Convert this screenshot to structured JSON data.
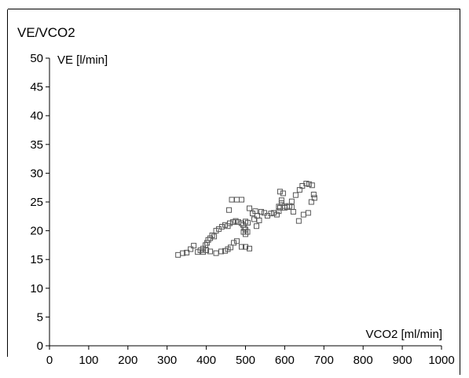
{
  "chart_data": {
    "type": "scatter",
    "title": "VE/VCO2",
    "xlabel": "VCO2 [ml/min]",
    "ylabel": "VE [l/min]",
    "xlim": [
      0,
      1000
    ],
    "ylim": [
      0,
      50
    ],
    "xticks": [
      0,
      100,
      200,
      300,
      400,
      500,
      600,
      700,
      800,
      900,
      1000
    ],
    "yticks": [
      0,
      5,
      10,
      15,
      20,
      25,
      30,
      35,
      40,
      45,
      50
    ],
    "grid": false,
    "marker": "open-square",
    "color": "#555555",
    "series": [
      {
        "points": [
          [
            328,
            15.8
          ],
          [
            340,
            16.1
          ],
          [
            350,
            16.2
          ],
          [
            360,
            16.8
          ],
          [
            368,
            17.4
          ],
          [
            378,
            16.3
          ],
          [
            385,
            16.6
          ],
          [
            392,
            16.9
          ],
          [
            398,
            17.5
          ],
          [
            402,
            17.9
          ],
          [
            405,
            18.4
          ],
          [
            410,
            18.7
          ],
          [
            415,
            19.2
          ],
          [
            420,
            19.0
          ],
          [
            425,
            20.0
          ],
          [
            432,
            20.3
          ],
          [
            440,
            20.7
          ],
          [
            448,
            21.0
          ],
          [
            455,
            20.8
          ],
          [
            460,
            21.3
          ],
          [
            458,
            23.6
          ],
          [
            465,
            25.4
          ],
          [
            478,
            25.4
          ],
          [
            490,
            25.4
          ],
          [
            468,
            21.5
          ],
          [
            475,
            21.7
          ],
          [
            482,
            21.5
          ],
          [
            490,
            21.3
          ],
          [
            494,
            21.0
          ],
          [
            497,
            20.5
          ],
          [
            500,
            20.2
          ],
          [
            505,
            19.8
          ],
          [
            500,
            19.4
          ],
          [
            495,
            19.8
          ],
          [
            500,
            21.6
          ],
          [
            506,
            21.4
          ],
          [
            510,
            23.9
          ],
          [
            518,
            23.0
          ],
          [
            525,
            23.4
          ],
          [
            530,
            22.6
          ],
          [
            535,
            21.8
          ],
          [
            528,
            20.8
          ],
          [
            522,
            22.0
          ],
          [
            540,
            23.3
          ],
          [
            548,
            23.1
          ],
          [
            556,
            22.6
          ],
          [
            565,
            23.0
          ],
          [
            572,
            23.1
          ],
          [
            580,
            22.8
          ],
          [
            585,
            23.4
          ],
          [
            588,
            24.0
          ],
          [
            592,
            25.3
          ],
          [
            588,
            26.8
          ],
          [
            596,
            26.5
          ],
          [
            600,
            24.0
          ],
          [
            606,
            24.1
          ],
          [
            612,
            24.3
          ],
          [
            618,
            24.1
          ],
          [
            622,
            23.3
          ],
          [
            618,
            25.1
          ],
          [
            628,
            26.2
          ],
          [
            638,
            27.1
          ],
          [
            645,
            27.8
          ],
          [
            655,
            28.2
          ],
          [
            662,
            28.1
          ],
          [
            670,
            27.9
          ],
          [
            674,
            26.3
          ],
          [
            676,
            25.7
          ],
          [
            668,
            25.0
          ],
          [
            660,
            23.1
          ],
          [
            648,
            22.8
          ],
          [
            636,
            21.7
          ],
          [
            600,
            24.3
          ],
          [
            592,
            24.8
          ],
          [
            585,
            24.2
          ],
          [
            510,
            16.9
          ],
          [
            500,
            17.2
          ],
          [
            490,
            17.2
          ],
          [
            478,
            18.2
          ],
          [
            470,
            17.9
          ],
          [
            462,
            17.1
          ],
          [
            455,
            16.8
          ],
          [
            448,
            16.5
          ],
          [
            438,
            16.4
          ],
          [
            425,
            16.1
          ],
          [
            410,
            16.4
          ],
          [
            400,
            16.6
          ],
          [
            392,
            16.3
          ]
        ]
      }
    ]
  }
}
